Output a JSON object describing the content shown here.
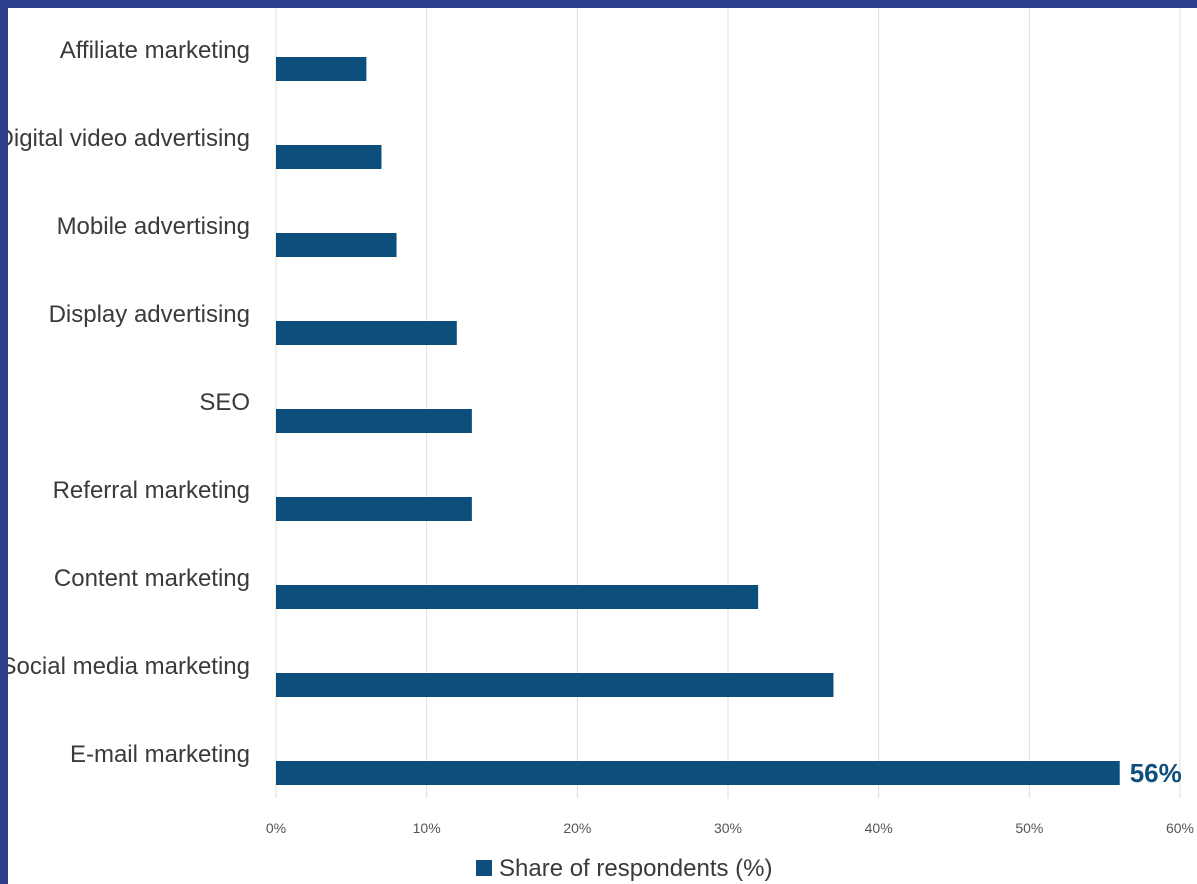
{
  "chart_data": {
    "type": "bar",
    "orientation": "horizontal",
    "categories": [
      "Affiliate marketing",
      "Digital video advertising",
      "Mobile advertising",
      "Display advertising",
      "SEO",
      "Referral marketing",
      "Content marketing",
      "Social media marketing",
      "E-mail marketing"
    ],
    "series": [
      {
        "name": "Share of respondents (%)",
        "values": [
          6,
          7,
          8,
          12,
          13,
          13,
          32,
          37,
          56
        ]
      }
    ],
    "xlim": [
      0,
      60
    ],
    "x_ticks": [
      "0%",
      "10%",
      "20%",
      "30%",
      "40%",
      "50%",
      "60%"
    ],
    "data_labels": [
      {
        "category": "E-mail marketing",
        "text": "56%"
      }
    ],
    "grid": "vertical",
    "legend_position": "bottom",
    "colors": {
      "bar": "#0d4f7c",
      "grid": "#dcdcdc",
      "frame": "#2c3e8c",
      "data_label": "#0d4f7c"
    }
  }
}
